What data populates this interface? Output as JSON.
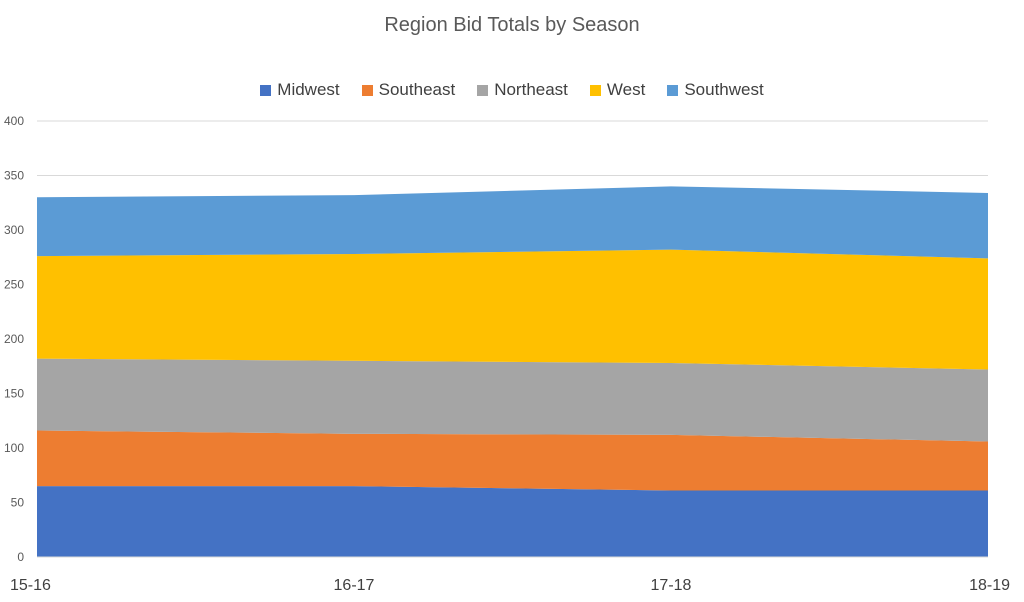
{
  "chart_data": {
    "type": "area",
    "stacked": true,
    "title": "Region Bid Totals by Season",
    "xlabel": "",
    "ylabel": "",
    "ylim": [
      0,
      400
    ],
    "yticks": [
      0,
      50,
      100,
      150,
      200,
      250,
      300,
      350,
      400
    ],
    "grid": true,
    "legend_position": "top",
    "categories": [
      "15-16",
      "16-17",
      "17-18",
      "18-19"
    ],
    "series": [
      {
        "name": "Midwest",
        "color": "#4472C4",
        "values": [
          65,
          65,
          61,
          61
        ]
      },
      {
        "name": "Southeast",
        "color": "#ED7D31",
        "values": [
          51,
          48,
          51,
          45
        ]
      },
      {
        "name": "Northeast",
        "color": "#A5A5A5",
        "values": [
          66,
          67,
          66,
          66
        ]
      },
      {
        "name": "West",
        "color": "#FFC000",
        "values": [
          94,
          98,
          104,
          102
        ]
      },
      {
        "name": "Southwest",
        "color": "#5B9BD5",
        "values": [
          54,
          54,
          58,
          60
        ]
      }
    ]
  }
}
